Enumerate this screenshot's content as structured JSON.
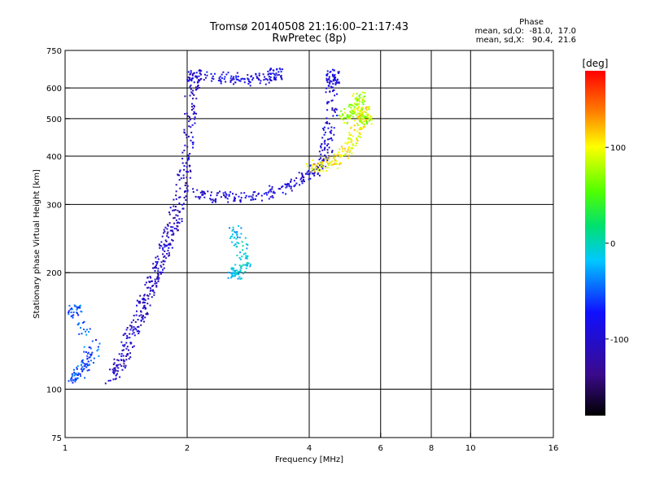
{
  "chart_data": {
    "type": "scatter",
    "title": "Tromsø 20140508 21:16:00–21:17:43",
    "subtitle": "RwPretec (8p)",
    "xlabel": "Frequency [MHz]",
    "ylabel": "Stationary phase Virtual Height [km]",
    "x_scale": "log",
    "y_scale": "log",
    "xlim": [
      1,
      16
    ],
    "ylim": [
      75,
      750
    ],
    "x_ticks": [
      1,
      2,
      4,
      6,
      8,
      10,
      16
    ],
    "y_ticks": [
      75,
      100,
      200,
      300,
      400,
      500,
      600,
      750
    ],
    "grid": true,
    "colorbar": {
      "label": "[deg]",
      "range": [
        -180,
        180
      ],
      "ticks": [
        100,
        0,
        -100
      ]
    },
    "phase_stats": {
      "header": "Phase",
      "o_line": "mean, sd,O:  -81.0,  17.0",
      "x_line": "mean, sd,X:   90.4,  21.6"
    },
    "traces": [
      {
        "name": "",
        "phase": -110,
        "points": [
          [
            1.3,
            107
          ],
          [
            1.35,
            115
          ],
          [
            1.4,
            125
          ],
          [
            1.45,
            140
          ],
          [
            1.5,
            150
          ],
          [
            1.55,
            165
          ],
          [
            1.6,
            180
          ],
          [
            1.65,
            195
          ],
          [
            1.7,
            210
          ],
          [
            1.75,
            230
          ],
          [
            1.8,
            250
          ],
          [
            1.85,
            270
          ],
          [
            1.9,
            300
          ],
          [
            1.95,
            350
          ],
          [
            2.0,
            400
          ],
          [
            2.02,
            500
          ],
          [
            2.05,
            600
          ],
          [
            2.08,
            650
          ]
        ]
      },
      {
        "name": "",
        "phase": -100,
        "points": [
          [
            2.1,
            320
          ],
          [
            2.3,
            315
          ],
          [
            2.6,
            315
          ],
          [
            3.0,
            318
          ],
          [
            3.4,
            330
          ],
          [
            3.8,
            350
          ],
          [
            4.1,
            370
          ],
          [
            4.3,
            390
          ],
          [
            4.4,
            430
          ],
          [
            4.5,
            500
          ],
          [
            4.55,
            600
          ],
          [
            4.55,
            650
          ]
        ]
      },
      {
        "name": "",
        "phase": -95,
        "points": [
          [
            2.2,
            650
          ],
          [
            2.5,
            640
          ],
          [
            2.8,
            630
          ],
          [
            3.1,
            640
          ],
          [
            3.3,
            655
          ]
        ]
      },
      {
        "name": "",
        "phase": 100,
        "points": [
          [
            4.0,
            380
          ],
          [
            4.3,
            375
          ],
          [
            4.6,
            390
          ],
          [
            4.9,
            410
          ],
          [
            5.1,
            440
          ],
          [
            5.3,
            480
          ],
          [
            5.4,
            520
          ]
        ]
      },
      {
        "name": "",
        "phase": 70,
        "points": [
          [
            4.8,
            500
          ],
          [
            5.0,
            520
          ],
          [
            5.2,
            540
          ],
          [
            5.3,
            580
          ],
          [
            5.5,
            500
          ]
        ]
      },
      {
        "name": "",
        "phase": -60,
        "points": [
          [
            1.02,
            105
          ],
          [
            1.08,
            110
          ],
          [
            1.12,
            118
          ],
          [
            1.18,
            125
          ],
          [
            1.05,
            160
          ]
        ]
      },
      {
        "name": "",
        "phase": -20,
        "points": [
          [
            2.6,
            260
          ],
          [
            2.7,
            240
          ],
          [
            2.8,
            210
          ],
          [
            2.6,
            200
          ]
        ]
      }
    ]
  }
}
